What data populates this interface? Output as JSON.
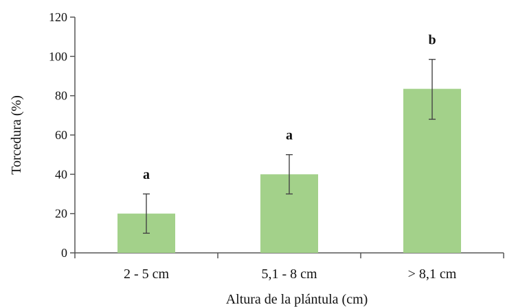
{
  "chart_data": {
    "type": "bar",
    "title": "",
    "xlabel": "Altura de la plántula (cm)",
    "ylabel": "Torcedura (%)",
    "ylim": [
      0,
      120
    ],
    "yticks": [
      0,
      20,
      40,
      60,
      80,
      100,
      120
    ],
    "categories": [
      "2 - 5 cm",
      "5,1 - 8 cm",
      "> 8,1 cm"
    ],
    "values": [
      20,
      40,
      83.5
    ],
    "error_low": [
      10,
      30,
      68
    ],
    "error_high": [
      30,
      50,
      98.5
    ],
    "significance": [
      "a",
      "a",
      "b"
    ],
    "bar_color": "#a3d18a",
    "grid": false,
    "legend": "none"
  }
}
